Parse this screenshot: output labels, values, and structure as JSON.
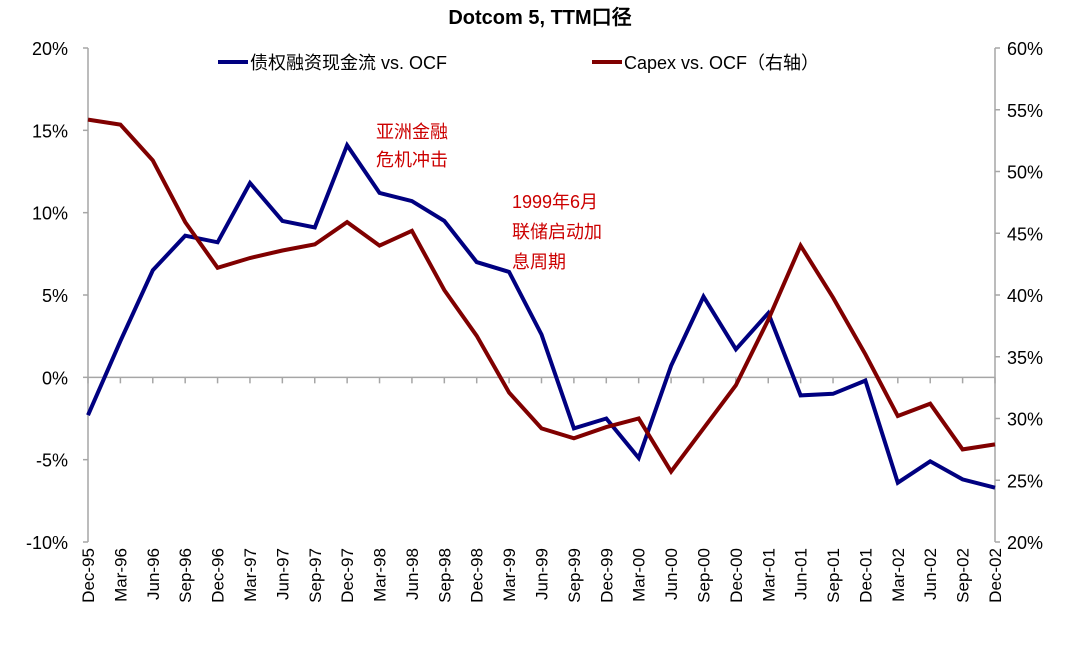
{
  "chart_data": {
    "type": "line",
    "title": "Dotcom 5, TTM口径",
    "categories": [
      "Dec-95",
      "Mar-96",
      "Jun-96",
      "Sep-96",
      "Dec-96",
      "Mar-97",
      "Jun-97",
      "Sep-97",
      "Dec-97",
      "Mar-98",
      "Jun-98",
      "Sep-98",
      "Dec-98",
      "Mar-99",
      "Jun-99",
      "Sep-99",
      "Dec-99",
      "Mar-00",
      "Jun-00",
      "Sep-00",
      "Dec-00",
      "Mar-01",
      "Jun-01",
      "Sep-01",
      "Dec-01",
      "Mar-02",
      "Jun-02",
      "Sep-02",
      "Dec-02"
    ],
    "left_axis": {
      "ylim": [
        -10,
        20
      ],
      "ticks": [
        -10,
        -5,
        0,
        5,
        10,
        15,
        20
      ],
      "tick_labels": [
        "-10%",
        "-5%",
        "0%",
        "5%",
        "10%",
        "15%",
        "20%"
      ]
    },
    "right_axis": {
      "ylim": [
        20,
        60
      ],
      "ticks": [
        20,
        25,
        30,
        35,
        40,
        45,
        50,
        55,
        60
      ],
      "tick_labels": [
        "20%",
        "25%",
        "30%",
        "35%",
        "40%",
        "45%",
        "50%",
        "55%",
        "60%"
      ]
    },
    "grid": false,
    "legend": "top",
    "series": [
      {
        "name": "债权融资现金流 vs. OCF",
        "axis": "left",
        "color": "#000080",
        "values": [
          -2.3,
          2.2,
          6.5,
          8.6,
          8.2,
          11.8,
          9.5,
          9.1,
          14.1,
          11.2,
          10.7,
          9.5,
          7.0,
          6.4,
          2.6,
          -3.1,
          -2.5,
          -4.9,
          0.7,
          4.9,
          1.7,
          3.9,
          -1.1,
          -1.0,
          -0.2,
          -6.4,
          -5.1,
          -6.2,
          -6.7
        ]
      },
      {
        "name": "Capex vs. OCF（右轴）",
        "axis": "right",
        "color": "#800000",
        "values": [
          54.2,
          53.8,
          50.9,
          45.9,
          42.2,
          43.0,
          43.6,
          44.1,
          45.9,
          44.0,
          45.2,
          40.4,
          36.7,
          32.1,
          29.2,
          28.4,
          29.3,
          30.0,
          25.7,
          29.2,
          32.7,
          38.0,
          44.0,
          39.8,
          35.2,
          30.2,
          31.2,
          27.5,
          27.9
        ]
      }
    ],
    "annotations": [
      {
        "lines": [
          "亚洲金融",
          "危机冲击"
        ],
        "color": "#cc0000"
      },
      {
        "lines": [
          "1999年6月",
          "联储启动加",
          "息周期"
        ],
        "color": "#cc0000"
      }
    ]
  }
}
